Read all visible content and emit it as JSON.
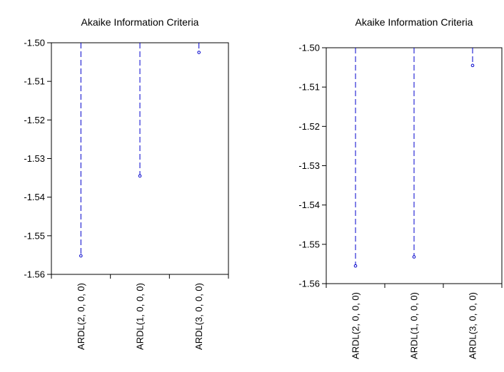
{
  "chart_data": [
    {
      "type": "scatter",
      "style": "dropline",
      "title": "Akaike Information Criteria",
      "categories": [
        "ARDL(2, 0, 0, 0)",
        "ARDL(1, 0, 0, 0)",
        "ARDL(3, 0, 0, 0)"
      ],
      "values": [
        -1.5552,
        -1.5345,
        -1.5025
      ],
      "ylim": [
        -1.56,
        -1.5
      ],
      "yticks": [
        "-1.50",
        "-1.51",
        "-1.52",
        "-1.53",
        "-1.54",
        "-1.55",
        "-1.56"
      ],
      "xlabel": "",
      "ylabel": "",
      "grid": false,
      "colors": {
        "series": "#0000cc",
        "axis": "#000000"
      }
    },
    {
      "type": "scatter",
      "style": "dropline",
      "title": "Akaike Information Criteria",
      "categories": [
        "ARDL(2, 0, 0, 0)",
        "ARDL(1, 0, 0, 0)",
        "ARDL(3, 0, 0, 0)"
      ],
      "values": [
        -1.5555,
        -1.5532,
        -1.5045
      ],
      "ylim": [
        -1.56,
        -1.5
      ],
      "yticks": [
        "-1.50",
        "-1.51",
        "-1.52",
        "-1.53",
        "-1.54",
        "-1.55",
        "-1.56"
      ],
      "xlabel": "",
      "ylabel": "",
      "grid": false,
      "colors": {
        "series": "#0000cc",
        "axis": "#000000"
      }
    }
  ]
}
